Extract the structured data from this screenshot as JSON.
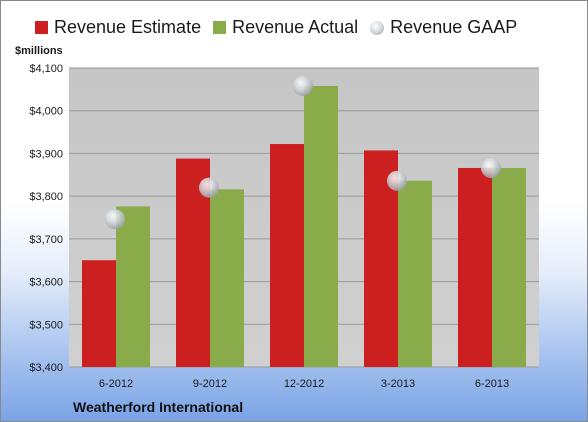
{
  "legend": {
    "estimate": "Revenue Estimate",
    "actual": "Revenue Actual",
    "gaap": "Revenue GAAP"
  },
  "unit_label": "$millions",
  "company": "Weatherford International",
  "colors": {
    "estimate": "#cc1f1f",
    "actual": "#8aab4a",
    "gaap": "#c8ccd2"
  },
  "chart_data": {
    "type": "bar",
    "categories": [
      "6-2012",
      "9-2012",
      "12-2012",
      "3-2013",
      "6-2013"
    ],
    "series": [
      {
        "name": "Revenue Estimate",
        "type": "bar",
        "values": [
          3650,
          3888,
          3922,
          3907,
          3866
        ]
      },
      {
        "name": "Revenue Actual",
        "type": "bar",
        "values": [
          3776,
          3816,
          4058,
          3836,
          3866
        ]
      },
      {
        "name": "Revenue GAAP",
        "type": "scatter",
        "values": [
          3746,
          3820,
          4058,
          3836,
          3866
        ]
      }
    ],
    "ylabel": "$millions",
    "ylim": [
      3400,
      4100
    ],
    "yticks": [
      3400,
      3500,
      3600,
      3700,
      3800,
      3900,
      4000,
      4100
    ],
    "ytick_labels": [
      "$3,400",
      "$3,500",
      "$3,600",
      "$3,700",
      "$3,800",
      "$3,900",
      "$4,000",
      "$4,100"
    ],
    "grid": true,
    "legend_position": "top"
  }
}
